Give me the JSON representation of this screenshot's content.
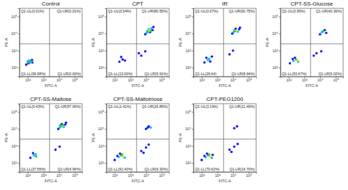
{
  "chart_data": [
    {
      "type": "scatter",
      "title": "Control",
      "x_label": "FITC-A",
      "y_label": "PE-A",
      "log": true,
      "xlim": [
        30,
        300000
      ],
      "ylim": [
        30,
        300000
      ],
      "xticks": [
        {
          "value": 100,
          "label": "10²"
        },
        {
          "value": 1000,
          "label": "10³"
        },
        {
          "value": 10000,
          "label": "10⁴"
        },
        {
          "value": 100000,
          "label": "10⁵"
        }
      ],
      "yticks": [
        {
          "value": 100,
          "label": "10²"
        },
        {
          "value": 1000,
          "label": "10³"
        },
        {
          "value": 10000,
          "label": "10⁴"
        },
        {
          "value": 100000,
          "label": "10⁵"
        }
      ],
      "gate_x": 2500,
      "gate_y": 2500,
      "quadrant_labels": [
        "Q1-UL(0.01%)",
        "Q1-UR(0.01%)",
        "Q1-LL(99.98%)",
        "Q1-LR(0.00%)"
      ],
      "x": [
        80,
        110,
        140,
        170,
        200,
        100,
        130,
        160,
        190,
        120,
        150,
        175,
        140,
        150
      ],
      "y": [
        150,
        180,
        220,
        260,
        200,
        230,
        190,
        240,
        280,
        260,
        210,
        230,
        200,
        215
      ],
      "colors": [
        "#1a1aff",
        "#1a1aff",
        "#1a1aff",
        "#1a1aff",
        "#1a1aff",
        "#00bfff",
        "#2ecc40",
        "#00bfff",
        "#1a1aff",
        "#00bfff",
        "#ffdc00",
        "#2ecc40",
        "#ff4136",
        "#00bfff"
      ]
    },
    {
      "type": "scatter",
      "title": "CPT",
      "x_label": "FITC-A",
      "y_label": "PE-A",
      "log": true,
      "xlim": [
        30,
        300000
      ],
      "ylim": [
        30,
        300000
      ],
      "xticks": [
        {
          "value": 100,
          "label": "10²"
        },
        {
          "value": 1000,
          "label": "10³"
        },
        {
          "value": 10000,
          "label": "10⁴"
        },
        {
          "value": 100000,
          "label": "10⁵"
        }
      ],
      "yticks": [
        {
          "value": 100,
          "label": "10²"
        },
        {
          "value": 1000,
          "label": "10³"
        },
        {
          "value": 10000,
          "label": "10⁴"
        },
        {
          "value": 100000,
          "label": "10⁵"
        }
      ],
      "gate_x": 2500,
      "gate_y": 2500,
      "quadrant_labels": [
        "Q1-UL(0.54%)",
        "Q1-UR(80.55%)",
        "Q1-LL(13.00%)",
        "Q1-LR(5.91%)"
      ],
      "x": [
        200,
        320,
        450,
        260,
        5000,
        9000,
        3500,
        9000,
        12000,
        15000,
        18000,
        22000,
        26000,
        14000,
        16000,
        20000,
        11000,
        30000
      ],
      "y": [
        220,
        300,
        260,
        420,
        500,
        900,
        700,
        9000,
        14000,
        18000,
        12000,
        20000,
        16000,
        13000,
        15000,
        14000,
        11000,
        24000
      ],
      "colors": [
        "#1a1aff",
        "#1a1aff",
        "#1a1aff",
        "#1a1aff",
        "#1a1aff",
        "#1a1aff",
        "#1a1aff",
        "#1a1aff",
        "#00bfff",
        "#00bfff",
        "#1a1aff",
        "#00bfff",
        "#1a1aff",
        "#2ecc40",
        "#ffdc00",
        "#2ecc40",
        "#00bfff",
        "#1a1aff"
      ]
    },
    {
      "type": "scatter",
      "title": "IR",
      "x_label": "FITC-A",
      "y_label": "PE-A",
      "log": true,
      "xlim": [
        30,
        300000
      ],
      "ylim": [
        30,
        300000
      ],
      "xticks": [
        {
          "value": 100,
          "label": "10²"
        },
        {
          "value": 1000,
          "label": "10³"
        },
        {
          "value": 10000,
          "label": "10⁴"
        },
        {
          "value": 100000,
          "label": "10⁵"
        }
      ],
      "yticks": [
        {
          "value": 100,
          "label": "10²"
        },
        {
          "value": 1000,
          "label": "10³"
        },
        {
          "value": 10000,
          "label": "10⁴"
        },
        {
          "value": 100000,
          "label": "10⁵"
        }
      ],
      "gate_x": 2500,
      "gate_y": 2500,
      "quadrant_labels": [
        "Q1-UL(0.67%)",
        "Q1-UR(60.75%)",
        "Q1-LL(29.64)",
        "Q1-LR(8.94%)"
      ],
      "x": [
        150,
        250,
        350,
        200,
        300,
        450,
        6000,
        10000,
        9000,
        12000,
        15000,
        20000,
        25000,
        14000,
        17000,
        11000,
        28000
      ],
      "y": [
        200,
        280,
        230,
        380,
        330,
        450,
        600,
        1000,
        10000,
        15000,
        19000,
        13000,
        18000,
        14000,
        15000,
        12000,
        22000
      ],
      "colors": [
        "#1a1aff",
        "#00bfff",
        "#1a1aff",
        "#1a1aff",
        "#00bfff",
        "#1a1aff",
        "#1a1aff",
        "#1a1aff",
        "#1a1aff",
        "#00bfff",
        "#1a1aff",
        "#00bfff",
        "#1a1aff",
        "#2ecc40",
        "#ffdc00",
        "#00bfff",
        "#1a1aff"
      ]
    },
    {
      "type": "scatter",
      "title": "CPT-SS-Glucose",
      "x_label": "FITC-A",
      "y_label": "PE-A",
      "log": true,
      "xlim": [
        30,
        300000
      ],
      "ylim": [
        30,
        300000
      ],
      "xticks": [
        {
          "value": 100,
          "label": "10²"
        },
        {
          "value": 1000,
          "label": "10³"
        },
        {
          "value": 10000,
          "label": "10⁴"
        },
        {
          "value": 100000,
          "label": "10⁵"
        }
      ],
      "yticks": [
        {
          "value": 100,
          "label": "10²"
        },
        {
          "value": 1000,
          "label": "10³"
        },
        {
          "value": 10000,
          "label": "10⁴"
        },
        {
          "value": 100000,
          "label": "10⁵"
        }
      ],
      "gate_x": 2500,
      "gate_y": 2500,
      "quadrant_labels": [
        "Q1-UL(0.95%)",
        "Q1-UR(40.36%)",
        "Q1-LL(53.67%)",
        "Q1-LR(5.02%)"
      ],
      "x": [
        120,
        200,
        300,
        400,
        250,
        350,
        180,
        6000,
        12000,
        4000,
        10000,
        15000,
        20000,
        25000,
        16000,
        13000
      ],
      "y": [
        180,
        250,
        300,
        220,
        380,
        260,
        320,
        700,
        900,
        500,
        9000,
        13000,
        16000,
        11000,
        14000,
        12000
      ],
      "colors": [
        "#1a1aff",
        "#00bfff",
        "#2ecc40",
        "#00bfff",
        "#1a1aff",
        "#ffdc00",
        "#1a1aff",
        "#1a1aff",
        "#1a1aff",
        "#1a1aff",
        "#1a1aff",
        "#00bfff",
        "#1a1aff",
        "#1a1aff",
        "#2ecc40",
        "#00bfff"
      ]
    },
    {
      "type": "scatter",
      "title": "CPT-SS-Maltose",
      "x_label": "FITC-A",
      "y_label": "PE-A",
      "log": true,
      "xlim": [
        30,
        300000
      ],
      "ylim": [
        30,
        300000
      ],
      "xticks": [
        {
          "value": 100,
          "label": "10²"
        },
        {
          "value": 1000,
          "label": "10³"
        },
        {
          "value": 10000,
          "label": "10⁴"
        },
        {
          "value": 100000,
          "label": "10⁵"
        }
      ],
      "yticks": [
        {
          "value": 100,
          "label": "10²"
        },
        {
          "value": 1000,
          "label": "10³"
        },
        {
          "value": 10000,
          "label": "10⁴"
        },
        {
          "value": 100000,
          "label": "10⁵"
        }
      ],
      "gate_x": 2500,
      "gate_y": 2500,
      "quadrant_labels": [
        "Q1-UL(0.43%)",
        "Q1-UR(57.06%)",
        "Q1-LL(37.55%)",
        "Q1-LR(4.96%)"
      ],
      "x": [
        150,
        250,
        350,
        220,
        320,
        6000,
        11000,
        9000,
        12000,
        15000,
        20000,
        25000,
        14000,
        17000,
        11000,
        28000,
        18000
      ],
      "y": [
        200,
        280,
        240,
        380,
        320,
        600,
        900,
        10000,
        16000,
        19000,
        13000,
        18000,
        14000,
        15000,
        12000,
        23000,
        17000
      ],
      "colors": [
        "#1a1aff",
        "#00bfff",
        "#2ecc40",
        "#1a1aff",
        "#00bfff",
        "#1a1aff",
        "#1a1aff",
        "#1a1aff",
        "#00bfff",
        "#1a1aff",
        "#00bfff",
        "#1a1aff",
        "#2ecc40",
        "#ffdc00",
        "#00bfff",
        "#1a1aff",
        "#2ecc40"
      ]
    },
    {
      "type": "scatter",
      "title": "CPT-SS-Maltotriose",
      "x_label": "FITC-A",
      "y_label": "PE-A",
      "log": true,
      "xlim": [
        30,
        300000
      ],
      "ylim": [
        30,
        300000
      ],
      "xticks": [
        {
          "value": 100,
          "label": "10²"
        },
        {
          "value": 1000,
          "label": "10³"
        },
        {
          "value": 10000,
          "label": "10⁴"
        },
        {
          "value": 100000,
          "label": "10⁵"
        }
      ],
      "yticks": [
        {
          "value": 100,
          "label": "10²"
        },
        {
          "value": 1000,
          "label": "10³"
        },
        {
          "value": 10000,
          "label": "10⁴"
        },
        {
          "value": 100000,
          "label": "10⁵"
        }
      ],
      "gate_x": 2500,
      "gate_y": 2500,
      "quadrant_labels": [
        "Q1-UL(1.41%)",
        "Q1-UR(26.89%)",
        "Q1-LL(62.40%)",
        "Q1-LR(9.30%)"
      ],
      "x": [
        100,
        180,
        260,
        350,
        450,
        220,
        300,
        150,
        5000,
        10000,
        15000,
        7000,
        10000,
        15000,
        20000,
        13000
      ],
      "y": [
        150,
        220,
        280,
        240,
        200,
        350,
        320,
        260,
        500,
        800,
        1200,
        400,
        10000,
        14000,
        12000,
        12000
      ],
      "colors": [
        "#1a1aff",
        "#00bfff",
        "#2ecc40",
        "#ffdc00",
        "#00bfff",
        "#1a1aff",
        "#2ecc40",
        "#1a1aff",
        "#1a1aff",
        "#1a1aff",
        "#1a1aff",
        "#1a1aff",
        "#1a1aff",
        "#1a1aff",
        "#00bfff",
        "#1a1aff"
      ]
    },
    {
      "type": "scatter",
      "title": "CPT-PEG1200",
      "x_label": "FITC-A",
      "y_label": "PE-A",
      "log": true,
      "xlim": [
        30,
        300000
      ],
      "ylim": [
        30,
        300000
      ],
      "xticks": [
        {
          "value": 100,
          "label": "10²"
        },
        {
          "value": 1000,
          "label": "10³"
        },
        {
          "value": 10000,
          "label": "10⁴"
        },
        {
          "value": 100000,
          "label": "10⁵"
        }
      ],
      "yticks": [
        {
          "value": 100,
          "label": "10²"
        },
        {
          "value": 1000,
          "label": "10³"
        },
        {
          "value": 10000,
          "label": "10⁴"
        },
        {
          "value": 100000,
          "label": "10⁵"
        }
      ],
      "gate_x": 2500,
      "gate_y": 2500,
      "quadrant_labels": [
        "Q1-UL(3.19%)",
        "Q1-UR(11.49%)",
        "Q1-LL(70.62%)",
        "Q1-LR(14.70%)"
      ],
      "x": [
        100,
        180,
        260,
        350,
        450,
        220,
        300,
        150,
        500,
        6000,
        12000,
        20000,
        8000,
        12000,
        18000
      ],
      "y": [
        150,
        220,
        280,
        240,
        200,
        350,
        320,
        260,
        300,
        600,
        900,
        1300,
        450,
        11000,
        14000
      ],
      "colors": [
        "#1a1aff",
        "#00bfff",
        "#2ecc40",
        "#ffdc00",
        "#00bfff",
        "#1a1aff",
        "#2ecc40",
        "#1a1aff",
        "#1a1aff",
        "#1a1aff",
        "#1a1aff",
        "#1a1aff",
        "#1a1aff",
        "#1a1aff",
        "#1a1aff"
      ]
    }
  ]
}
